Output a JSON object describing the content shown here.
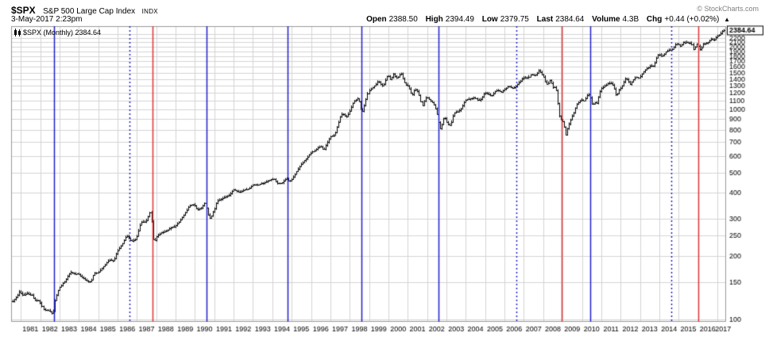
{
  "header": {
    "symbol": "$SPX",
    "index_name": "S&P 500 Large Cap Index",
    "exchange": "INDX",
    "copyright": "© StockCharts.com",
    "timestamp": "3-May-2017 2:23pm",
    "quote": {
      "open_label": "Open",
      "open": "2388.50",
      "high_label": "High",
      "high": "2394.49",
      "low_label": "Low",
      "low": "2379.75",
      "last_label": "Last",
      "last": "2384.64",
      "volume_label": "Volume",
      "volume": "4.3B",
      "chg_label": "Chg",
      "chg": "+0.44 (+0.02%)",
      "chg_arrow": "▲"
    }
  },
  "overlay": {
    "label": "$SPX (Monthly) 2384.64"
  },
  "axis": {
    "last_price_tag": "2384.64"
  },
  "chart_data": {
    "type": "ohlc",
    "title": "$SPX (Monthly)",
    "symbol": "$SPX",
    "timeframe": "Monthly",
    "last": 2384.64,
    "y_scale": "log",
    "ylim": [
      97,
      2500
    ],
    "x_range": [
      1980.5,
      2017.45
    ],
    "grid": true,
    "colors": {
      "bar": "#000000",
      "grid": "#d4d4d4",
      "border": "#999999",
      "blue": "#2020cc",
      "red": "#e03535"
    },
    "x_ticks": [
      1981,
      1982,
      1983,
      1984,
      1985,
      1986,
      1987,
      1988,
      1989,
      1990,
      1991,
      1992,
      1993,
      1994,
      1995,
      1996,
      1997,
      1998,
      1999,
      2000,
      2001,
      2002,
      2003,
      2004,
      2005,
      2006,
      2007,
      2008,
      2009,
      2010,
      2011,
      2012,
      2013,
      2014,
      2015,
      2016,
      2017
    ],
    "y_ticks": [
      2300,
      2200,
      2100,
      2000,
      1900,
      1800,
      1700,
      1600,
      1500,
      1400,
      1300,
      1200,
      1100,
      1000,
      900,
      800,
      700,
      600,
      500,
      400,
      300,
      250,
      200,
      150,
      100
    ],
    "event_lines": [
      {
        "x": 1982.7,
        "color": "blue",
        "dash": false
      },
      {
        "x": 1986.6,
        "color": "blue",
        "dash": true
      },
      {
        "x": 1987.8,
        "color": "red",
        "dash": false
      },
      {
        "x": 1990.6,
        "color": "blue",
        "dash": false
      },
      {
        "x": 1994.8,
        "color": "blue",
        "dash": false
      },
      {
        "x": 1998.6,
        "color": "blue",
        "dash": false
      },
      {
        "x": 2002.6,
        "color": "blue",
        "dash": false
      },
      {
        "x": 2006.6,
        "color": "blue",
        "dash": true
      },
      {
        "x": 2008.95,
        "color": "red",
        "dash": false
      },
      {
        "x": 2010.45,
        "color": "blue",
        "dash": false
      },
      {
        "x": 2014.6,
        "color": "blue",
        "dash": true
      },
      {
        "x": 2016.0,
        "color": "red",
        "dash": false
      }
    ],
    "monthly_close_anchors": [
      [
        1980.58,
        122
      ],
      [
        1980.79,
        128
      ],
      [
        1980.92,
        136
      ],
      [
        1981.08,
        130
      ],
      [
        1981.33,
        133
      ],
      [
        1981.58,
        130
      ],
      [
        1981.75,
        123
      ],
      [
        1981.92,
        123
      ],
      [
        1982.17,
        111
      ],
      [
        1982.42,
        110
      ],
      [
        1982.58,
        107
      ],
      [
        1982.63,
        103
      ],
      [
        1982.71,
        120
      ],
      [
        1982.87,
        134
      ],
      [
        1982.96,
        141
      ],
      [
        1983.29,
        153
      ],
      [
        1983.54,
        168
      ],
      [
        1983.79,
        164
      ],
      [
        1983.96,
        165
      ],
      [
        1984.21,
        157
      ],
      [
        1984.46,
        151
      ],
      [
        1984.63,
        151
      ],
      [
        1984.79,
        166
      ],
      [
        1984.96,
        167
      ],
      [
        1985.29,
        180
      ],
      [
        1985.54,
        192
      ],
      [
        1985.79,
        190
      ],
      [
        1985.96,
        211
      ],
      [
        1986.21,
        226
      ],
      [
        1986.46,
        251
      ],
      [
        1986.71,
        236
      ],
      [
        1986.96,
        242
      ],
      [
        1987.21,
        292
      ],
      [
        1987.46,
        290
      ],
      [
        1987.63,
        319
      ],
      [
        1987.71,
        330
      ],
      [
        1987.79,
        252
      ],
      [
        1987.87,
        230
      ],
      [
        1987.96,
        247
      ],
      [
        1988.21,
        258
      ],
      [
        1988.46,
        262
      ],
      [
        1988.71,
        272
      ],
      [
        1988.96,
        278
      ],
      [
        1989.21,
        295
      ],
      [
        1989.46,
        318
      ],
      [
        1989.71,
        349
      ],
      [
        1989.96,
        353
      ],
      [
        1990.12,
        332
      ],
      [
        1990.37,
        340
      ],
      [
        1990.46,
        358
      ],
      [
        1990.54,
        356
      ],
      [
        1990.62,
        323
      ],
      [
        1990.71,
        306
      ],
      [
        1990.79,
        300
      ],
      [
        1990.87,
        322
      ],
      [
        1990.96,
        330
      ],
      [
        1991.12,
        367
      ],
      [
        1991.37,
        375
      ],
      [
        1991.62,
        387
      ],
      [
        1991.79,
        392
      ],
      [
        1991.96,
        417
      ],
      [
        1992.29,
        404
      ],
      [
        1992.54,
        415
      ],
      [
        1992.79,
        418
      ],
      [
        1992.96,
        436
      ],
      [
        1993.29,
        440
      ],
      [
        1993.54,
        448
      ],
      [
        1993.79,
        459
      ],
      [
        1993.96,
        466
      ],
      [
        1994.12,
        464
      ],
      [
        1994.21,
        446
      ],
      [
        1994.46,
        444
      ],
      [
        1994.71,
        472
      ],
      [
        1994.87,
        454
      ],
      [
        1994.96,
        459
      ],
      [
        1995.21,
        500
      ],
      [
        1995.46,
        545
      ],
      [
        1995.71,
        578
      ],
      [
        1995.96,
        616
      ],
      [
        1996.21,
        645
      ],
      [
        1996.46,
        671
      ],
      [
        1996.63,
        640
      ],
      [
        1996.79,
        687
      ],
      [
        1996.96,
        741
      ],
      [
        1997.21,
        757
      ],
      [
        1997.29,
        801
      ],
      [
        1997.54,
        954
      ],
      [
        1997.71,
        947
      ],
      [
        1997.79,
        914
      ],
      [
        1997.96,
        970
      ],
      [
        1998.21,
        1101
      ],
      [
        1998.46,
        1134
      ],
      [
        1998.63,
        957
      ],
      [
        1998.71,
        1017
      ],
      [
        1998.87,
        1164
      ],
      [
        1998.96,
        1229
      ],
      [
        1999.21,
        1286
      ],
      [
        1999.46,
        1373
      ],
      [
        1999.71,
        1283
      ],
      [
        1999.79,
        1363
      ],
      [
        1999.96,
        1469
      ],
      [
        2000.12,
        1366
      ],
      [
        2000.21,
        1499
      ],
      [
        2000.37,
        1421
      ],
      [
        2000.54,
        1431
      ],
      [
        2000.63,
        1518
      ],
      [
        2000.71,
        1437
      ],
      [
        2000.87,
        1315
      ],
      [
        2000.96,
        1320
      ],
      [
        2001.12,
        1240
      ],
      [
        2001.21,
        1160
      ],
      [
        2001.37,
        1256
      ],
      [
        2001.54,
        1211
      ],
      [
        2001.63,
        1134
      ],
      [
        2001.71,
        1041
      ],
      [
        2001.79,
        1060
      ],
      [
        2001.87,
        1139
      ],
      [
        2001.96,
        1148
      ],
      [
        2002.12,
        1107
      ],
      [
        2002.29,
        1077
      ],
      [
        2002.46,
        990
      ],
      [
        2002.54,
        912
      ],
      [
        2002.63,
        815
      ],
      [
        2002.71,
        816
      ],
      [
        2002.79,
        886
      ],
      [
        2002.87,
        936
      ],
      [
        2002.96,
        880
      ],
      [
        2003.12,
        841
      ],
      [
        2003.21,
        848
      ],
      [
        2003.37,
        964
      ],
      [
        2003.54,
        975
      ],
      [
        2003.71,
        996
      ],
      [
        2003.87,
        1058
      ],
      [
        2003.96,
        1112
      ],
      [
        2004.21,
        1126
      ],
      [
        2004.46,
        1141
      ],
      [
        2004.63,
        1104
      ],
      [
        2004.79,
        1130
      ],
      [
        2004.96,
        1212
      ],
      [
        2005.21,
        1181
      ],
      [
        2005.29,
        1157
      ],
      [
        2005.54,
        1234
      ],
      [
        2005.71,
        1229
      ],
      [
        2005.79,
        1207
      ],
      [
        2005.96,
        1248
      ],
      [
        2006.21,
        1295
      ],
      [
        2006.37,
        1270
      ],
      [
        2006.54,
        1277
      ],
      [
        2006.71,
        1336
      ],
      [
        2006.96,
        1418
      ],
      [
        2007.21,
        1421
      ],
      [
        2007.37,
        1483
      ],
      [
        2007.54,
        1455
      ],
      [
        2007.63,
        1474
      ],
      [
        2007.71,
        1527
      ],
      [
        2007.79,
        1549
      ],
      [
        2007.87,
        1481
      ],
      [
        2007.96,
        1468
      ],
      [
        2008.12,
        1331
      ],
      [
        2008.21,
        1323
      ],
      [
        2008.37,
        1400
      ],
      [
        2008.46,
        1280
      ],
      [
        2008.54,
        1267
      ],
      [
        2008.63,
        1283
      ],
      [
        2008.71,
        1166
      ],
      [
        2008.79,
        969
      ],
      [
        2008.87,
        896
      ],
      [
        2008.96,
        903
      ],
      [
        2009.08,
        826
      ],
      [
        2009.13,
        735
      ],
      [
        2009.21,
        798
      ],
      [
        2009.37,
        873
      ],
      [
        2009.46,
        919
      ],
      [
        2009.63,
        987
      ],
      [
        2009.71,
        1057
      ],
      [
        2009.87,
        1096
      ],
      [
        2009.96,
        1115
      ],
      [
        2010.12,
        1104
      ],
      [
        2010.21,
        1169
      ],
      [
        2010.37,
        1187
      ],
      [
        2010.46,
        1089
      ],
      [
        2010.54,
        1031
      ],
      [
        2010.63,
        1102
      ],
      [
        2010.71,
        1049
      ],
      [
        2010.87,
        1183
      ],
      [
        2010.96,
        1258
      ],
      [
        2011.12,
        1286
      ],
      [
        2011.29,
        1326
      ],
      [
        2011.46,
        1345
      ],
      [
        2011.54,
        1321
      ],
      [
        2011.63,
        1292
      ],
      [
        2011.71,
        1219
      ],
      [
        2011.79,
        1131
      ],
      [
        2011.87,
        1253
      ],
      [
        2011.92,
        1247
      ],
      [
        2011.96,
        1258
      ],
      [
        2012.12,
        1312
      ],
      [
        2012.21,
        1408
      ],
      [
        2012.37,
        1398
      ],
      [
        2012.46,
        1310
      ],
      [
        2012.63,
        1379
      ],
      [
        2012.71,
        1407
      ],
      [
        2012.79,
        1441
      ],
      [
        2012.87,
        1412
      ],
      [
        2012.96,
        1426
      ],
      [
        2013.12,
        1498
      ],
      [
        2013.29,
        1570
      ],
      [
        2013.46,
        1598
      ],
      [
        2013.54,
        1631
      ],
      [
        2013.63,
        1606
      ],
      [
        2013.71,
        1633
      ],
      [
        2013.87,
        1806
      ],
      [
        2013.96,
        1848
      ],
      [
        2014.12,
        1783
      ],
      [
        2014.29,
        1872
      ],
      [
        2014.46,
        1924
      ],
      [
        2014.63,
        1930
      ],
      [
        2014.71,
        1972
      ],
      [
        2014.79,
        2018
      ],
      [
        2014.87,
        2068
      ],
      [
        2014.96,
        2059
      ],
      [
        2015.12,
        1995
      ],
      [
        2015.21,
        2104
      ],
      [
        2015.37,
        2086
      ],
      [
        2015.46,
        2107
      ],
      [
        2015.54,
        2063
      ],
      [
        2015.63,
        2104
      ],
      [
        2015.71,
        1972
      ],
      [
        2015.79,
        1920
      ],
      [
        2015.87,
        2079
      ],
      [
        2015.96,
        2044
      ],
      [
        2016.08,
        1940
      ],
      [
        2016.13,
        1932
      ],
      [
        2016.21,
        2060
      ],
      [
        2016.37,
        2065
      ],
      [
        2016.46,
        2097
      ],
      [
        2016.54,
        2099
      ],
      [
        2016.63,
        2174
      ],
      [
        2016.71,
        2171
      ],
      [
        2016.79,
        2126
      ],
      [
        2016.87,
        2199
      ],
      [
        2016.96,
        2239
      ],
      [
        2017.12,
        2279
      ],
      [
        2017.21,
        2364
      ],
      [
        2017.29,
        2384
      ],
      [
        2017.33,
        2384.64
      ]
    ]
  }
}
